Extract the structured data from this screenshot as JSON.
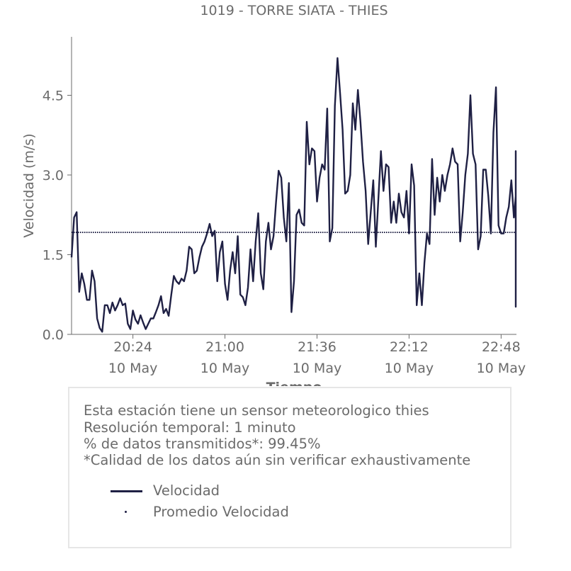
{
  "chart_data": {
    "type": "line",
    "title": "1019 - TORRE SIATA - THIES",
    "xlabel": "Tiempo",
    "ylabel": "Velocidad (m/s)",
    "ylim": [
      0,
      5.6
    ],
    "xlim": [
      "20:00",
      "22:54"
    ],
    "yticks": [
      0.0,
      1.5,
      3.0,
      4.5
    ],
    "ytick_labels": [
      "0.0",
      "1.5",
      "3.0",
      "4.5"
    ],
    "xticks": [
      {
        "time": "20:24",
        "line1": "20:24",
        "line2": "10 May"
      },
      {
        "time": "21:00",
        "line1": "21:00",
        "line2": "10 May"
      },
      {
        "time": "21:36",
        "line1": "21:36",
        "line2": "10 May"
      },
      {
        "time": "22:12",
        "line1": "22:12",
        "line2": "10 May"
      },
      {
        "time": "22:48",
        "line1": "22:48",
        "line2": "10 May"
      }
    ],
    "x_start": "20:00",
    "x_step_minutes": 1,
    "series": [
      {
        "name": "Velocidad",
        "style": "line",
        "color": "#1f2044",
        "values": [
          1.45,
          2.2,
          2.3,
          0.8,
          1.15,
          0.95,
          0.65,
          0.65,
          1.2,
          1.0,
          0.3,
          0.12,
          0.05,
          0.55,
          0.55,
          0.4,
          0.6,
          0.45,
          0.55,
          0.68,
          0.55,
          0.58,
          0.2,
          0.1,
          0.45,
          0.28,
          0.2,
          0.36,
          0.22,
          0.1,
          0.2,
          0.3,
          0.3,
          0.42,
          0.55,
          0.72,
          0.4,
          0.48,
          0.35,
          0.75,
          1.1,
          1.0,
          0.95,
          1.05,
          1.0,
          1.2,
          1.65,
          1.6,
          1.15,
          1.2,
          1.45,
          1.65,
          1.75,
          1.9,
          2.08,
          1.85,
          1.95,
          1.0,
          1.55,
          1.75,
          0.95,
          0.65,
          1.2,
          1.55,
          1.15,
          1.85,
          0.75,
          0.7,
          0.55,
          0.88,
          1.6,
          1.0,
          1.75,
          2.28,
          1.15,
          0.85,
          1.75,
          2.1,
          1.6,
          1.85,
          2.5,
          3.08,
          2.95,
          2.2,
          1.75,
          2.85,
          0.42,
          1.0,
          2.25,
          2.35,
          2.1,
          2.05,
          4.0,
          3.2,
          3.5,
          3.45,
          2.5,
          2.95,
          3.2,
          3.1,
          4.25,
          1.75,
          2.0,
          4.3,
          5.2,
          4.55,
          3.85,
          2.65,
          2.7,
          3.0,
          4.35,
          3.85,
          4.6,
          4.0,
          3.25,
          2.7,
          1.7,
          2.3,
          2.9,
          1.65,
          2.55,
          3.45,
          2.7,
          3.2,
          3.15,
          2.1,
          2.5,
          2.1,
          2.65,
          2.3,
          2.2,
          2.7,
          1.9,
          3.2,
          2.8,
          0.55,
          1.15,
          0.55,
          1.35,
          1.9,
          1.7,
          3.3,
          2.25,
          2.95,
          2.5,
          3.0,
          2.7,
          3.0,
          3.2,
          3.5,
          3.25,
          3.2,
          1.75,
          2.3,
          3.0,
          3.4,
          4.5,
          3.4,
          3.2,
          1.6,
          1.85,
          3.1,
          3.1,
          2.6,
          1.9,
          3.8,
          4.65,
          2.05,
          1.9,
          1.9,
          2.2,
          2.4,
          2.9,
          2.2,
          2.6,
          3.45,
          3.4,
          0.52,
          1.3,
          1.4
        ]
      },
      {
        "name": "Promedio Velocidad",
        "style": "dotted",
        "color": "#1f2044",
        "value": 1.92
      }
    ],
    "grid": false,
    "legend_position": "inside info box, bottom-left"
  },
  "info": {
    "line1": "Esta estación tiene un sensor meteorologico thies",
    "line2": "Resolución temporal: 1 minuto",
    "line3": "% de datos transmitidos*: 99.45%",
    "line4": "*Calidad de los datos aún sin verificar exhaustivamente"
  },
  "legend": {
    "item1": "Velocidad",
    "item2": "Promedio Velocidad"
  },
  "colors": {
    "series": "#1f2044",
    "text": "#6b6b6b",
    "axis": "#6b6b6b",
    "box_border": "#e6e6e6"
  }
}
